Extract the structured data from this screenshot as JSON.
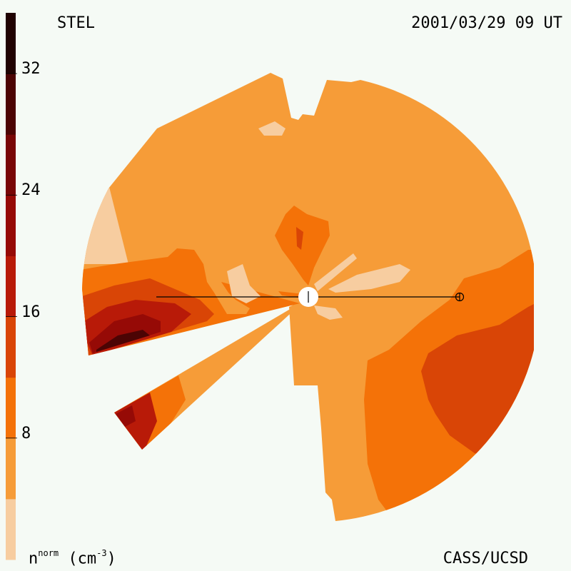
{
  "header": {
    "instrument": "STEL",
    "datetime": "2001/03/29 09 UT"
  },
  "footer": {
    "credit": "CASS/UCSD",
    "unit_symbol": "n",
    "unit_superscript": "norm",
    "unit_text": "(cm",
    "unit_exponent": "-3",
    "unit_close": ")"
  },
  "chart_data": {
    "type": "heatmap",
    "description_of_colorbar": "density levels",
    "colorbar": {
      "min": 0,
      "max": 36,
      "ticks": [
        8,
        16,
        24,
        32
      ],
      "tick_labels": [
        "8",
        "16",
        "24",
        "32"
      ],
      "levels": [
        {
          "from": 0,
          "to": 4,
          "color": "#f7cda0"
        },
        {
          "from": 4,
          "to": 8,
          "color": "#f69c38"
        },
        {
          "from": 8,
          "to": 12,
          "color": "#f47208"
        },
        {
          "from": 12,
          "to": 16,
          "color": "#d94506"
        },
        {
          "from": 16,
          "to": 20,
          "color": "#b81a08"
        },
        {
          "from": 20,
          "to": 24,
          "color": "#960a06"
        },
        {
          "from": 24,
          "to": 28,
          "color": "#780606"
        },
        {
          "from": 28,
          "to": 32,
          "color": "#4c0404"
        },
        {
          "from": 32,
          "to": 36,
          "color": "#200202"
        }
      ]
    },
    "markers": [
      {
        "name": "sun",
        "symbol": "circle"
      },
      {
        "name": "earth",
        "symbol": "circle-plus"
      }
    ]
  }
}
